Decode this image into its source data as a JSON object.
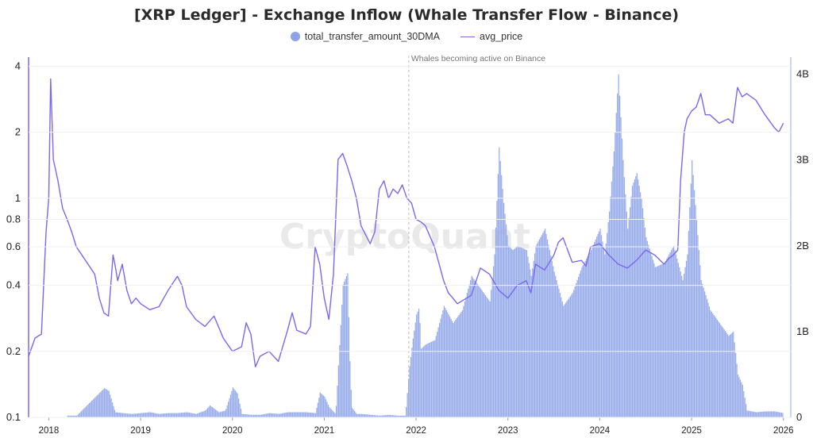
{
  "chart_data": {
    "type": "bar+line",
    "title": "[XRP Ledger] - Exchange Inflow (Whale Transfer Flow - Binance)",
    "watermark": "CryptoQuant",
    "legend": [
      {
        "name": "total_transfer_amount_30DMA",
        "marker": "dot"
      },
      {
        "name": "avg_price",
        "marker": "line"
      }
    ],
    "legend_placement": "top-center",
    "colors": {
      "bars": "#8da3e8",
      "price_line": "#7b68ee",
      "annotation_line": "#b8b8b8"
    },
    "annotation": {
      "text": "Whales becoming active on Binance",
      "x": 2021.92
    },
    "x_ticks": [
      "2018",
      "2019",
      "2020",
      "2021",
      "2022",
      "2023",
      "2024",
      "2025",
      "2026"
    ],
    "xlim": [
      2017.78,
      2026.08
    ],
    "left_axis": {
      "scale": "log",
      "ylim": [
        0.1,
        4.4
      ],
      "ticks": [
        "0.1",
        "0.2",
        "0.4",
        "0.6",
        "0.8",
        "1",
        "2",
        "4"
      ]
    },
    "right_axis": {
      "scale": "linear",
      "ylim": [
        0,
        4.2
      ],
      "ticks": [
        "0",
        "1B",
        "2B",
        "3B",
        "4B"
      ]
    },
    "series": [
      {
        "name": "total_transfer_amount_30DMA",
        "axis": "right",
        "unit": "billion XRP",
        "x": [
          2018.2,
          2018.3,
          2018.6,
          2018.65,
          2018.72,
          2018.8,
          2018.9,
          2019.0,
          2019.1,
          2019.2,
          2019.3,
          2019.4,
          2019.5,
          2019.6,
          2019.7,
          2019.75,
          2019.85,
          2019.92,
          2020.0,
          2020.05,
          2020.1,
          2020.2,
          2020.3,
          2020.4,
          2020.5,
          2020.6,
          2020.7,
          2020.8,
          2020.9,
          2020.95,
          2021.0,
          2021.05,
          2021.12,
          2021.2,
          2021.25,
          2021.28,
          2021.3,
          2021.35,
          2021.4,
          2021.5,
          2021.6,
          2021.7,
          2021.8,
          2021.88,
          2021.92,
          2021.96,
          2022.0,
          2022.03,
          2022.05,
          2022.1,
          2022.2,
          2022.3,
          2022.4,
          2022.5,
          2022.6,
          2022.7,
          2022.8,
          2022.85,
          2022.9,
          2022.95,
          2023.0,
          2023.05,
          2023.1,
          2023.2,
          2023.25,
          2023.3,
          2023.4,
          2023.5,
          2023.6,
          2023.7,
          2023.8,
          2023.9,
          2024.0,
          2024.05,
          2024.1,
          2024.15,
          2024.2,
          2024.22,
          2024.25,
          2024.3,
          2024.35,
          2024.4,
          2024.45,
          2024.5,
          2024.6,
          2024.7,
          2024.8,
          2024.85,
          2024.9,
          2024.95,
          2025.0,
          2025.1,
          2025.2,
          2025.3,
          2025.4,
          2025.45,
          2025.5,
          2025.55,
          2025.6,
          2025.7,
          2025.8,
          2025.9,
          2026.0
        ],
        "values": [
          0.02,
          0.02,
          0.34,
          0.31,
          0.06,
          0.05,
          0.04,
          0.05,
          0.06,
          0.04,
          0.05,
          0.05,
          0.06,
          0.04,
          0.08,
          0.14,
          0.06,
          0.08,
          0.35,
          0.28,
          0.04,
          0.03,
          0.03,
          0.05,
          0.04,
          0.06,
          0.06,
          0.06,
          0.05,
          0.29,
          0.24,
          0.12,
          0.04,
          1.55,
          1.68,
          0.45,
          0.11,
          0.04,
          0.04,
          0.03,
          0.02,
          0.03,
          0.02,
          0.02,
          0.55,
          0.9,
          1.2,
          1.28,
          0.8,
          0.85,
          0.9,
          1.3,
          1.1,
          1.25,
          1.65,
          1.5,
          1.35,
          1.9,
          3.15,
          2.5,
          2.0,
          1.95,
          2.0,
          1.95,
          1.65,
          2.0,
          2.2,
          1.7,
          1.3,
          1.45,
          1.75,
          1.95,
          2.2,
          1.9,
          2.4,
          3.1,
          4.0,
          3.6,
          3.0,
          2.2,
          2.7,
          2.85,
          2.55,
          2.1,
          1.75,
          1.8,
          2.0,
          1.8,
          1.6,
          1.9,
          3.0,
          1.6,
          1.25,
          1.1,
          0.95,
          1.0,
          0.5,
          0.38,
          0.08,
          0.06,
          0.07,
          0.07,
          0.05
        ]
      },
      {
        "name": "avg_price",
        "axis": "left",
        "unit": "USD",
        "x": [
          2017.78,
          2017.85,
          2017.92,
          2017.97,
          2018.0,
          2018.02,
          2018.05,
          2018.1,
          2018.15,
          2018.2,
          2018.25,
          2018.3,
          2018.4,
          2018.5,
          2018.55,
          2018.6,
          2018.65,
          2018.7,
          2018.72,
          2018.75,
          2018.8,
          2018.85,
          2018.9,
          2018.95,
          2019.0,
          2019.1,
          2019.2,
          2019.3,
          2019.4,
          2019.45,
          2019.5,
          2019.6,
          2019.7,
          2019.8,
          2019.9,
          2020.0,
          2020.1,
          2020.15,
          2020.2,
          2020.25,
          2020.3,
          2020.4,
          2020.5,
          2020.6,
          2020.65,
          2020.7,
          2020.8,
          2020.85,
          2020.9,
          2020.95,
          2021.0,
          2021.05,
          2021.1,
          2021.15,
          2021.2,
          2021.25,
          2021.3,
          2021.35,
          2021.4,
          2021.45,
          2021.5,
          2021.55,
          2021.6,
          2021.65,
          2021.7,
          2021.75,
          2021.8,
          2021.85,
          2021.9,
          2021.95,
          2022.0,
          2022.05,
          2022.1,
          2022.2,
          2022.3,
          2022.35,
          2022.4,
          2022.45,
          2022.5,
          2022.6,
          2022.7,
          2022.8,
          2022.9,
          2023.0,
          2023.1,
          2023.2,
          2023.25,
          2023.3,
          2023.4,
          2023.5,
          2023.55,
          2023.6,
          2023.7,
          2023.8,
          2023.85,
          2023.9,
          2024.0,
          2024.1,
          2024.2,
          2024.3,
          2024.4,
          2024.5,
          2024.6,
          2024.7,
          2024.75,
          2024.8,
          2024.85,
          2024.88,
          2024.92,
          2024.95,
          2025.0,
          2025.05,
          2025.1,
          2025.15,
          2025.2,
          2025.3,
          2025.4,
          2025.45,
          2025.5,
          2025.55,
          2025.6,
          2025.7,
          2025.8,
          2025.9,
          2025.95,
          2026.0
        ],
        "values": [
          0.19,
          0.23,
          0.24,
          0.7,
          1.0,
          3.5,
          1.5,
          1.2,
          0.9,
          0.8,
          0.7,
          0.6,
          0.52,
          0.45,
          0.35,
          0.3,
          0.29,
          0.55,
          0.5,
          0.42,
          0.5,
          0.38,
          0.33,
          0.35,
          0.33,
          0.31,
          0.32,
          0.38,
          0.44,
          0.4,
          0.32,
          0.28,
          0.26,
          0.29,
          0.23,
          0.2,
          0.21,
          0.27,
          0.24,
          0.17,
          0.19,
          0.2,
          0.18,
          0.25,
          0.3,
          0.25,
          0.24,
          0.26,
          0.6,
          0.5,
          0.35,
          0.28,
          0.45,
          1.5,
          1.6,
          1.4,
          1.2,
          1.0,
          0.75,
          0.68,
          0.62,
          0.7,
          1.1,
          1.2,
          1.0,
          1.1,
          1.05,
          1.15,
          1.0,
          0.95,
          0.8,
          0.78,
          0.75,
          0.6,
          0.42,
          0.37,
          0.35,
          0.33,
          0.34,
          0.36,
          0.48,
          0.45,
          0.38,
          0.35,
          0.4,
          0.42,
          0.37,
          0.5,
          0.47,
          0.55,
          0.63,
          0.66,
          0.51,
          0.52,
          0.49,
          0.6,
          0.62,
          0.55,
          0.5,
          0.48,
          0.52,
          0.58,
          0.55,
          0.5,
          0.53,
          0.55,
          0.58,
          1.2,
          2.0,
          2.3,
          2.5,
          2.6,
          3.0,
          2.4,
          2.4,
          2.2,
          2.3,
          2.2,
          3.2,
          2.9,
          3.0,
          2.8,
          2.4,
          2.1,
          2.0,
          2.2
        ]
      }
    ]
  }
}
